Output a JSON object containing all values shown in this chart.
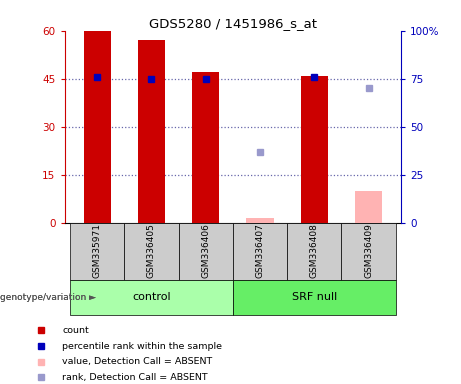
{
  "title": "GDS5280 / 1451986_s_at",
  "samples": [
    "GSM335971",
    "GSM336405",
    "GSM336406",
    "GSM336407",
    "GSM336408",
    "GSM336409"
  ],
  "red_bars": [
    60,
    57,
    47,
    null,
    46,
    null
  ],
  "pink_bars": [
    null,
    null,
    null,
    1.5,
    null,
    10
  ],
  "blue_squares_pct": [
    76,
    75,
    75,
    null,
    76,
    null
  ],
  "light_blue_squares_pct": [
    null,
    null,
    null,
    37,
    null,
    70
  ],
  "ylim_left": [
    0,
    60
  ],
  "ylim_right": [
    0,
    100
  ],
  "yticks_left": [
    0,
    15,
    30,
    45,
    60
  ],
  "yticks_right": [
    0,
    25,
    50,
    75,
    100
  ],
  "ytick_labels_left": [
    "0",
    "15",
    "30",
    "45",
    "60"
  ],
  "ytick_labels_right": [
    "0",
    "25",
    "50",
    "75",
    "100%"
  ],
  "left_axis_color": "#cc0000",
  "right_axis_color": "#0000bb",
  "bar_width": 0.5,
  "red_bar_color": "#cc0000",
  "pink_bar_color": "#ffb3b3",
  "blue_square_color": "#0000bb",
  "light_blue_square_color": "#9999cc",
  "dotted_line_color": "#6666aa",
  "bg_label_color": "#cccccc",
  "group_control_color": "#aaffaa",
  "group_srf_color": "#66ee66",
  "legend_items": [
    {
      "label": "count",
      "color": "#cc0000"
    },
    {
      "label": "percentile rank within the sample",
      "color": "#0000bb"
    },
    {
      "label": "value, Detection Call = ABSENT",
      "color": "#ffb3b3"
    },
    {
      "label": "rank, Detection Call = ABSENT",
      "color": "#9999cc"
    }
  ],
  "genotype_label": "genotype/variation ►"
}
